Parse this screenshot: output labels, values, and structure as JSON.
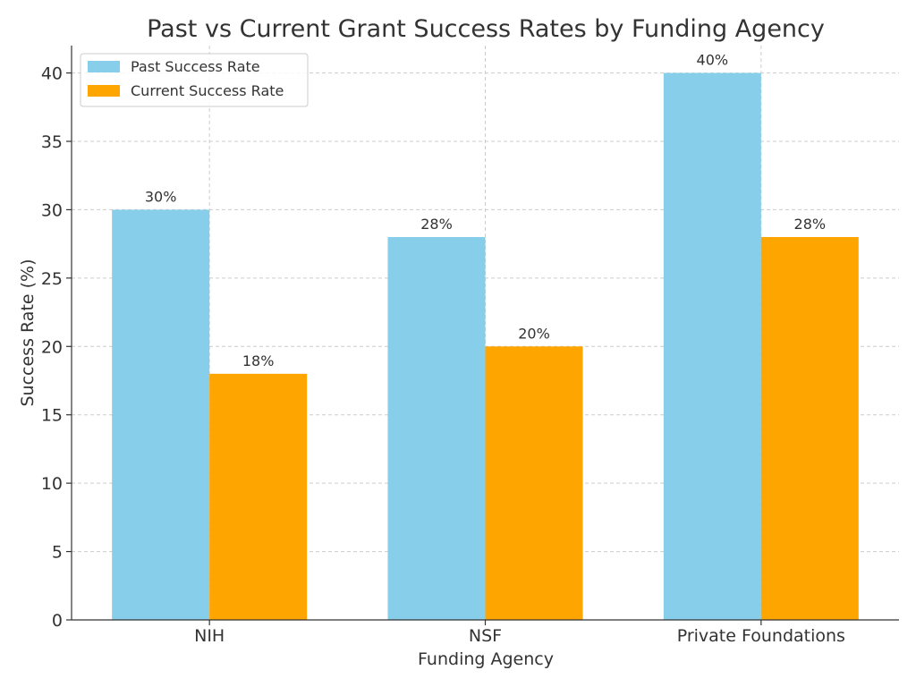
{
  "chart_data": {
    "type": "bar",
    "title": "Past vs Current Grant Success Rates by Funding Agency",
    "xlabel": "Funding Agency",
    "ylabel": "Success Rate (%)",
    "categories": [
      "NIH",
      "NSF",
      "Private Foundations"
    ],
    "series": [
      {
        "name": "Past Success Rate",
        "color": "#87ceeb",
        "values": [
          30,
          28,
          40
        ],
        "labels": [
          "30%",
          "28%",
          "40%"
        ]
      },
      {
        "name": "Current Success Rate",
        "color": "#ffa500",
        "values": [
          18,
          20,
          28
        ],
        "labels": [
          "18%",
          "20%",
          "28%"
        ]
      }
    ],
    "ylim": [
      0,
      42
    ],
    "yticks": [
      0,
      5,
      10,
      15,
      20,
      25,
      30,
      35,
      40
    ],
    "ytick_labels": [
      "0",
      "5",
      "10",
      "15",
      "20",
      "25",
      "30",
      "35",
      "40"
    ],
    "grid": true,
    "legend_position": "top-left"
  }
}
